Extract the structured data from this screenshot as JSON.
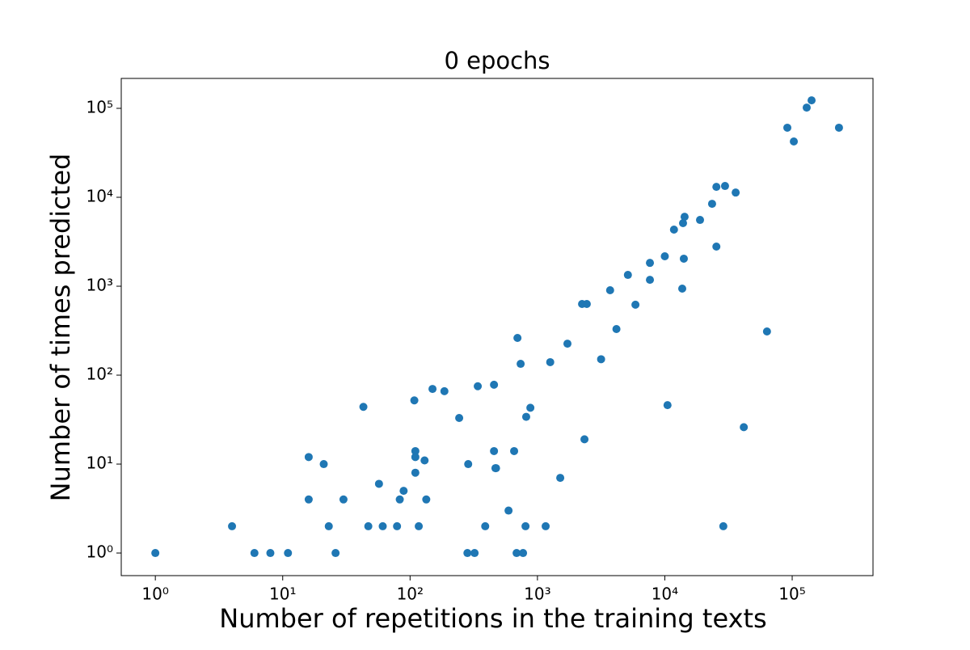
{
  "chart_data": {
    "type": "scatter",
    "title": "0 epochs",
    "x_label": "Number of repetitions in the training texts",
    "y_label": "Number of times predicted",
    "xscale": "log",
    "yscale": "log",
    "color": "#1f77b4",
    "xlim": [
      0.54,
      431000
    ],
    "ylim": [
      0.557,
      217000
    ],
    "xticks": [
      {
        "value": 1,
        "label": "10⁰"
      },
      {
        "value": 10,
        "label": "10¹"
      },
      {
        "value": 100,
        "label": "10²"
      },
      {
        "value": 1000,
        "label": "10³"
      },
      {
        "value": 10000,
        "label": "10⁴"
      },
      {
        "value": 100000,
        "label": "10⁵"
      }
    ],
    "yticks": [
      {
        "value": 1,
        "label": "10⁰"
      },
      {
        "value": 10,
        "label": "10¹"
      },
      {
        "value": 100,
        "label": "10²"
      },
      {
        "value": 1000,
        "label": "10³"
      },
      {
        "value": 10000,
        "label": "10⁴"
      },
      {
        "value": 100000,
        "label": "10⁵"
      }
    ],
    "x": [
      1,
      4,
      6,
      8,
      11,
      16,
      16,
      21,
      23,
      26,
      30,
      43,
      47,
      57,
      61,
      79,
      83,
      89,
      108,
      110,
      110,
      110,
      117,
      130,
      134,
      150,
      186,
      243,
      282,
      286,
      321,
      340,
      389,
      456,
      456,
      468,
      473,
      593,
      656,
      686,
      697,
      738,
      771,
      806,
      816,
      880,
      1160,
      1260,
      1510,
      1720,
      2240,
      2440,
      2340,
      3160,
      3720,
      4170,
      5130,
      5880,
      7640,
      7640,
      10000,
      10500,
      11800,
      13700,
      13900,
      14300,
      14100,
      18900,
      23500,
      25400,
      25400,
      29700,
      28800,
      36000,
      41700,
      63400,
      91600,
      103000,
      130000,
      142000,
      233000
    ],
    "values": [
      1,
      2,
      1,
      1,
      1,
      12,
      4,
      10,
      2,
      1,
      4,
      44,
      2,
      6,
      2,
      2,
      4,
      5,
      52,
      14,
      12,
      8,
      2,
      11,
      4,
      70,
      66,
      33,
      1,
      10,
      1,
      75,
      2,
      78,
      14,
      9,
      9,
      3,
      14,
      1,
      262,
      134,
      1,
      2,
      34,
      43,
      2,
      140,
      7,
      226,
      631,
      631,
      19,
      151,
      901,
      330,
      1340,
      620,
      1830,
      1180,
      2170,
      46,
      4330,
      940,
      5120,
      6040,
      2040,
      5560,
      8450,
      13100,
      2790,
      13400,
      2,
      11300,
      26,
      310,
      60600,
      42400,
      102000,
      123000,
      60600
    ]
  }
}
